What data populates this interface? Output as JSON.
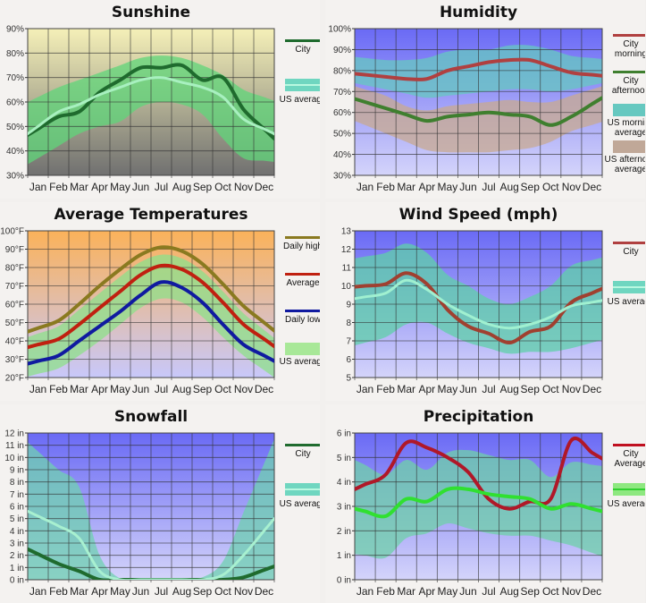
{
  "months": [
    "Jan",
    "Feb",
    "Mar",
    "Apr",
    "May",
    "Jun",
    "Jul",
    "Aug",
    "Sep",
    "Oct",
    "Nov",
    "Dec"
  ],
  "chart_data": [
    {
      "id": "sunshine",
      "type": "line",
      "title": "Sunshine",
      "ylim": [
        30,
        90
      ],
      "yticks": [
        30,
        40,
        50,
        60,
        70,
        80,
        90
      ],
      "ytick_labels": [
        "30%",
        "40%",
        "50%",
        "60%",
        "70%",
        "80%",
        "90%"
      ],
      "background": [
        "#f5f0b8",
        "#707070"
      ],
      "grid": true,
      "legend_position": "right",
      "bands": [
        {
          "name": "US average range",
          "lower": [
            37,
            42,
            47,
            50,
            52,
            58,
            60,
            59,
            55,
            45,
            37,
            36
          ],
          "upper": [
            62,
            66,
            69,
            72,
            75,
            78,
            79,
            78,
            75,
            71,
            65,
            62
          ],
          "color": "#5fd67a"
        }
      ],
      "series": [
        {
          "name": "City",
          "legend": "City",
          "values": [
            49,
            54,
            56,
            64,
            69,
            74,
            74,
            75,
            69,
            70,
            57,
            49
          ],
          "color": "#1f6b2e",
          "width": 3
        },
        {
          "name": "US average",
          "legend": "US average",
          "values": [
            50,
            56,
            59,
            63,
            66,
            69,
            70,
            68,
            66,
            62,
            53,
            49
          ],
          "color": "#a8f0c0",
          "width": 2
        }
      ],
      "legend": [
        {
          "label": "City",
          "kind": "line",
          "color": "#1f6b2e"
        },
        {
          "label": "US average",
          "kind": "band",
          "color": "#6fd6c0"
        }
      ]
    },
    {
      "id": "humidity",
      "type": "line",
      "title": "Humidity",
      "ylim": [
        30,
        100
      ],
      "yticks": [
        30,
        40,
        50,
        60,
        70,
        80,
        90,
        100
      ],
      "ytick_labels": [
        "30%",
        "40%",
        "50%",
        "60%",
        "70%",
        "80%",
        "90%",
        "100%"
      ],
      "background": [
        "#6a6af5",
        "#d4d4fa"
      ],
      "grid": true,
      "legend_position": "right",
      "bands": [
        {
          "name": "US afternoon average",
          "lower": [
            54,
            50,
            46,
            42,
            41,
            41,
            41,
            42,
            43,
            46,
            51,
            54
          ],
          "upper": [
            71,
            68,
            63,
            61,
            63,
            64,
            65,
            66,
            65,
            65,
            68,
            71
          ],
          "color": "#c8aa90"
        },
        {
          "name": "US morning average",
          "lower": [
            73,
            71,
            69,
            67,
            68,
            69,
            70,
            71,
            71,
            70,
            71,
            73
          ],
          "upper": [
            86,
            85,
            85,
            86,
            89,
            90,
            90,
            92,
            92,
            90,
            87,
            86
          ],
          "color": "#66c8c0"
        }
      ],
      "series": [
        {
          "name": "City morning",
          "legend": "City morning",
          "values": [
            78,
            77,
            76,
            76,
            80,
            82,
            84,
            85,
            85,
            82,
            79,
            78
          ],
          "color": "#b04040",
          "width": 3
        },
        {
          "name": "City afternoon",
          "legend": "City afternoon",
          "values": [
            65,
            62,
            59,
            56,
            58,
            59,
            60,
            59,
            58,
            54,
            58,
            64
          ],
          "color": "#3f7f2f",
          "width": 3
        }
      ],
      "legend": [
        {
          "label": "City",
          "label2": "morning",
          "kind": "line",
          "color": "#b04040"
        },
        {
          "label": "City",
          "label2": "afternoon",
          "kind": "line",
          "color": "#3f7f2f"
        },
        {
          "label": "US morning",
          "label2": "average",
          "kind": "box",
          "color": "#66c8c0"
        },
        {
          "label": "US afternoon",
          "label2": "average",
          "kind": "box",
          "color": "#c0a898"
        }
      ]
    },
    {
      "id": "temperature",
      "type": "line",
      "title": "Average Temperatures",
      "ylim": [
        20,
        100
      ],
      "yticks": [
        20,
        30,
        40,
        50,
        60,
        70,
        80,
        90,
        100
      ],
      "ytick_labels": [
        "20°F",
        "30°F",
        "40°F",
        "50°F",
        "60°F",
        "70°F",
        "80°F",
        "90°F",
        "100°F"
      ],
      "background": [
        "#fbb25a",
        "#c8c8fa"
      ],
      "grid": true,
      "legend_position": "right",
      "bands": [
        {
          "name": "US average range",
          "lower": [
            22,
            25,
            32,
            40,
            49,
            58,
            63,
            61,
            53,
            42,
            32,
            24
          ],
          "upper": [
            44,
            48,
            57,
            66,
            75,
            83,
            87,
            85,
            78,
            67,
            55,
            46
          ],
          "color": "#8ee08a"
        }
      ],
      "series": [
        {
          "name": "Daily high",
          "legend": "Daily high",
          "values": [
            47,
            51,
            60,
            70,
            79,
            87,
            91,
            89,
            82,
            71,
            59,
            50
          ],
          "color": "#8a7a20",
          "width": 3
        },
        {
          "name": "Average",
          "legend": "Average",
          "values": [
            38,
            41,
            49,
            58,
            67,
            76,
            81,
            79,
            72,
            61,
            49,
            41
          ],
          "color": "#c02010",
          "width": 3
        },
        {
          "name": "Daily low",
          "legend": "Daily low",
          "values": [
            29,
            32,
            40,
            48,
            56,
            65,
            72,
            69,
            61,
            49,
            38,
            32
          ],
          "color": "#101aa0",
          "width": 3
        }
      ],
      "legend": [
        {
          "label": "Daily high",
          "kind": "line",
          "color": "#8a7a20"
        },
        {
          "label": "Average",
          "kind": "line",
          "color": "#c02010"
        },
        {
          "label": "Daily low",
          "kind": "line",
          "color": "#101aa0"
        },
        {
          "label": "US average",
          "kind": "box",
          "color": "#a8e898"
        }
      ]
    },
    {
      "id": "wind",
      "type": "line",
      "title": "Wind Speed (mph)",
      "ylim": [
        5,
        13
      ],
      "yticks": [
        5,
        6,
        7,
        8,
        9,
        10,
        11,
        12,
        13
      ],
      "ytick_labels": [
        "5",
        "6",
        "7",
        "8",
        "9",
        "10",
        "11",
        "12",
        "13"
      ],
      "background": [
        "#6a6af5",
        "#d4d4fa"
      ],
      "grid": true,
      "legend_position": "right",
      "bands": [
        {
          "name": "US average range",
          "lower": [
            6.9,
            7.2,
            7.9,
            8.0,
            7.4,
            6.9,
            6.6,
            6.3,
            6.4,
            6.4,
            6.6,
            6.9
          ],
          "upper": [
            11.6,
            11.8,
            12.3,
            11.8,
            10.6,
            10.0,
            9.3,
            9.0,
            9.4,
            10.0,
            11.1,
            11.4
          ],
          "color": "#5fd0a8"
        }
      ],
      "series": [
        {
          "name": "City",
          "legend": "City",
          "values": [
            10.0,
            10.1,
            10.7,
            10.1,
            8.7,
            7.8,
            7.4,
            6.9,
            7.5,
            7.8,
            9.1,
            9.6
          ],
          "color": "#a04030",
          "width": 3
        },
        {
          "name": "US average",
          "legend": "US average",
          "values": [
            9.4,
            9.6,
            10.3,
            9.8,
            9.0,
            8.4,
            7.9,
            7.7,
            7.9,
            8.3,
            8.9,
            9.1
          ],
          "color": "#a0f0d0",
          "width": 2
        }
      ],
      "legend": [
        {
          "label": "City",
          "kind": "line",
          "color": "#b04040"
        },
        {
          "label": "US average",
          "kind": "band",
          "color": "#6fd6c0"
        }
      ]
    },
    {
      "id": "snowfall",
      "type": "line",
      "title": "Snowfall",
      "ylim": [
        0,
        12
      ],
      "yticks": [
        0,
        1,
        2,
        3,
        4,
        5,
        6,
        7,
        8,
        9,
        10,
        11,
        12
      ],
      "ytick_labels": [
        "0 in",
        "1 in",
        "2 in",
        "3 in",
        "4 in",
        "5 in",
        "6 in",
        "7 in",
        "8 in",
        "9 in",
        "10 in",
        "11 in",
        "12 in"
      ],
      "background": [
        "#6a6af5",
        "#d4d4fa"
      ],
      "grid": true,
      "legend_position": "right",
      "bands": [
        {
          "name": "US average range",
          "lower": [
            0,
            0,
            0,
            0,
            0,
            0,
            0,
            0,
            0,
            0,
            0,
            0
          ],
          "upper": [
            10.5,
            9.0,
            7.6,
            2.0,
            0.1,
            0,
            0,
            0,
            0.2,
            1.5,
            5.5,
            9.5
          ],
          "color": "#6fd0b0"
        }
      ],
      "series": [
        {
          "name": "City",
          "legend": "City",
          "values": [
            2.1,
            1.3,
            0.7,
            0,
            0,
            0,
            0,
            0,
            0,
            0,
            0.2,
            0.8
          ],
          "color": "#1f6b2e",
          "width": 3
        },
        {
          "name": "US average",
          "legend": "US average",
          "values": [
            5.2,
            4.4,
            3.4,
            0.7,
            0,
            0,
            0,
            0,
            0,
            0.4,
            2.0,
            4.0
          ],
          "color": "#a8f0d0",
          "width": 2
        }
      ],
      "legend": [
        {
          "label": "City",
          "kind": "line",
          "color": "#1f6b2e"
        },
        {
          "label": "US average",
          "kind": "band",
          "color": "#6fd6c0"
        }
      ]
    },
    {
      "id": "precipitation",
      "type": "line",
      "title": "Precipitation",
      "ylim": [
        0,
        6
      ],
      "yticks": [
        0,
        1,
        2,
        3,
        4,
        5,
        6
      ],
      "ytick_labels": [
        "0 in",
        "1 in",
        "2 in",
        "3 in",
        "4 in",
        "5 in",
        "6 in"
      ],
      "background": [
        "#6a6af5",
        "#d4d4fa"
      ],
      "grid": true,
      "legend_position": "right",
      "bands": [
        {
          "name": "US average range",
          "lower": [
            1.0,
            0.9,
            1.7,
            1.9,
            2.3,
            2.1,
            1.9,
            1.8,
            1.8,
            1.6,
            1.4,
            1.1
          ],
          "upper": [
            4.7,
            4.3,
            4.9,
            4.5,
            5.2,
            5.3,
            5.1,
            4.9,
            4.9,
            4.2,
            4.8,
            4.7
          ],
          "color": "#6fd0a8"
        }
      ],
      "series": [
        {
          "name": "City Average",
          "legend": "City Average",
          "values": [
            3.9,
            4.3,
            5.6,
            5.4,
            5.0,
            4.4,
            3.3,
            2.9,
            3.2,
            3.3,
            5.7,
            5.2
          ],
          "color": "#b01828",
          "width": 3
        },
        {
          "name": "US average",
          "legend": "US average",
          "values": [
            2.8,
            2.6,
            3.3,
            3.2,
            3.7,
            3.7,
            3.5,
            3.4,
            3.3,
            2.9,
            3.1,
            2.9
          ],
          "color": "#30e030",
          "width": 3
        }
      ],
      "legend": [
        {
          "label": "City",
          "label2": "Average",
          "kind": "line",
          "color": "#c01020"
        },
        {
          "label": "US average",
          "kind": "greenband",
          "color": "#8ee880"
        }
      ]
    }
  ]
}
